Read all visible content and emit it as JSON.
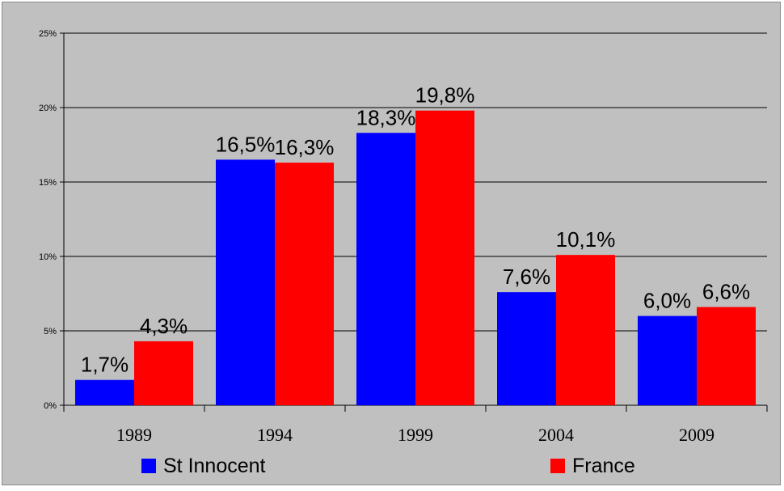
{
  "chart_data": {
    "type": "bar",
    "categories": [
      "1989",
      "1994",
      "1999",
      "2004",
      "2009"
    ],
    "series": [
      {
        "name": "St Innocent",
        "color": "#0000ff",
        "values": [
          1.7,
          16.5,
          18.3,
          7.6,
          6.0
        ],
        "labels": [
          "1,7%",
          "16,5%",
          "18,3%",
          "7,6%",
          "6,0%"
        ]
      },
      {
        "name": "France",
        "color": "#ff0000",
        "values": [
          4.3,
          16.3,
          19.8,
          10.1,
          6.6
        ],
        "labels": [
          "4,3%",
          "16,3%",
          "19,8%",
          "10,1%",
          "6,6%"
        ]
      }
    ],
    "ylim": [
      0,
      25
    ],
    "yticks": [
      0,
      5,
      10,
      15,
      20,
      25
    ],
    "ytick_labels": [
      "0%",
      "5%",
      "10%",
      "15%",
      "20%",
      "25%"
    ],
    "grid": true,
    "legend_position": "bottom",
    "background_color": "#c0c0c0"
  }
}
